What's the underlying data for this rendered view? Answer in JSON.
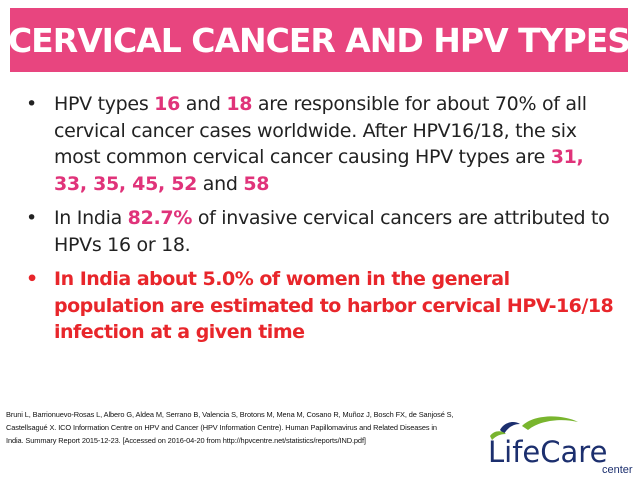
{
  "header": {
    "title": "CERVICAL CANCER AND HPV TYPES"
  },
  "bullets": [
    {
      "t1": "HPV types ",
      "h1": "16",
      "t2": " and ",
      "h2": "18",
      "t3": " are responsible for about 70% of all cervical cancer cases worldwide. After HPV16/18, the six most common cervical cancer causing HPV types are ",
      "h3": "31, 33, 35, 45, 52",
      "t4": " and ",
      "h4": "58"
    },
    {
      "t1": "In India ",
      "h1": "82.7%",
      "t2": " of invasive cervical cancers are attributed to HPVs 16 or 18."
    },
    {
      "text": "In India about 5.0% of women in the general population are estimated to harbor cervical HPV-16/18 infection at a given time"
    }
  ],
  "bullet_symbol": "•",
  "citation": "Bruni L, Barrionuevo-Rosas L, Albero G, Aldea M, Serrano B, Valencia S, Brotons M, Mena M, Cosano R, Muñoz J, Bosch FX, de Sanjosé S, Castellsagué X. ICO Information Centre on HPV and Cancer (HPV Information Centre). Human Papillomavirus and Related Diseases in India. Summary Report 2015-12-23. [Accessed on 2016-04-20 from http://hpvcentre.net/statistics/reports/IND.pdf]",
  "logo": {
    "name": "LifeCare",
    "sub": "center"
  },
  "colors": {
    "banner": "#e8457f",
    "pink_highlight": "#e0337a",
    "red_highlight": "#e8262b",
    "logo_navy": "#1c2f6e",
    "logo_green": "#79b52e"
  }
}
